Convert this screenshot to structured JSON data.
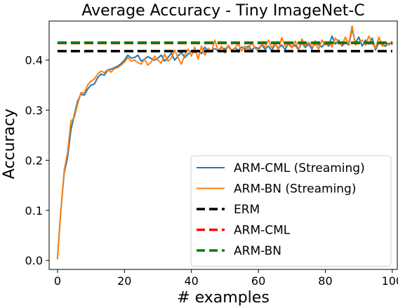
{
  "chart_data": {
    "type": "line",
    "title": "Average Accuracy - Tiny ImageNet-C",
    "xlabel": "# examples",
    "ylabel": "Accuracy",
    "xlim": [
      -2.5,
      101.5
    ],
    "ylim": [
      -0.018,
      0.478
    ],
    "xticks": [
      0,
      20,
      40,
      60,
      80,
      100
    ],
    "yticks": [
      0.0,
      0.1,
      0.2,
      0.3,
      0.4
    ],
    "ytick_labels": [
      "0.0",
      "0.1",
      "0.2",
      "0.3",
      "0.4"
    ],
    "grid": false,
    "legend_position": "lower-right",
    "x": [
      0,
      1,
      2,
      3,
      4,
      5,
      6,
      7,
      8,
      9,
      10,
      11,
      12,
      13,
      14,
      15,
      16,
      17,
      18,
      19,
      20,
      21,
      22,
      23,
      24,
      25,
      26,
      27,
      28,
      29,
      30,
      31,
      32,
      33,
      34,
      35,
      36,
      37,
      38,
      39,
      40,
      41,
      42,
      43,
      44,
      45,
      46,
      47,
      48,
      49,
      50,
      51,
      52,
      53,
      54,
      55,
      56,
      57,
      58,
      59,
      60,
      61,
      62,
      63,
      64,
      65,
      66,
      67,
      68,
      69,
      70,
      71,
      72,
      73,
      74,
      75,
      76,
      77,
      78,
      79,
      80,
      81,
      82,
      83,
      84,
      85,
      86,
      87,
      88,
      89,
      90,
      91,
      92,
      93,
      94,
      95,
      96,
      97,
      98,
      99,
      100
    ],
    "series": [
      {
        "name": "ARM-CML (Streaming)",
        "style": "solid",
        "color": "#1f77b4",
        "values": [
          0.005,
          0.1,
          0.175,
          0.205,
          0.26,
          0.29,
          0.318,
          0.332,
          0.33,
          0.342,
          0.35,
          0.352,
          0.365,
          0.372,
          0.37,
          0.38,
          0.382,
          0.385,
          0.388,
          0.393,
          0.4,
          0.41,
          0.404,
          0.405,
          0.41,
          0.398,
          0.402,
          0.407,
          0.403,
          0.4,
          0.404,
          0.41,
          0.398,
          0.405,
          0.414,
          0.4,
          0.408,
          0.416,
          0.405,
          0.412,
          0.418,
          0.415,
          0.42,
          0.413,
          0.426,
          0.416,
          0.42,
          0.423,
          0.418,
          0.425,
          0.422,
          0.427,
          0.419,
          0.424,
          0.42,
          0.426,
          0.422,
          0.428,
          0.42,
          0.426,
          0.423,
          0.43,
          0.422,
          0.428,
          0.418,
          0.432,
          0.424,
          0.43,
          0.421,
          0.434,
          0.426,
          0.43,
          0.42,
          0.436,
          0.425,
          0.432,
          0.422,
          0.438,
          0.43,
          0.426,
          0.436,
          0.428,
          0.448,
          0.432,
          0.44,
          0.428,
          0.436,
          0.43,
          0.462,
          0.434,
          0.446,
          0.428,
          0.44,
          0.432,
          0.444,
          0.42,
          0.436,
          0.43,
          0.428,
          0.434,
          0.432
        ]
      },
      {
        "name": "ARM-BN (Streaming)",
        "style": "solid",
        "color": "#ff7f0e",
        "values": [
          0.003,
          0.098,
          0.18,
          0.215,
          0.278,
          0.285,
          0.312,
          0.335,
          0.334,
          0.35,
          0.358,
          0.362,
          0.372,
          0.378,
          0.375,
          0.381,
          0.376,
          0.383,
          0.385,
          0.39,
          0.396,
          0.405,
          0.398,
          0.4,
          0.395,
          0.392,
          0.402,
          0.39,
          0.396,
          0.408,
          0.4,
          0.394,
          0.412,
          0.398,
          0.404,
          0.42,
          0.405,
          0.392,
          0.41,
          0.422,
          0.408,
          0.426,
          0.402,
          0.428,
          0.41,
          0.424,
          0.416,
          0.44,
          0.418,
          0.428,
          0.414,
          0.43,
          0.42,
          0.424,
          0.433,
          0.418,
          0.428,
          0.42,
          0.436,
          0.424,
          0.418,
          0.432,
          0.426,
          0.44,
          0.424,
          0.434,
          0.42,
          0.445,
          0.428,
          0.432,
          0.424,
          0.438,
          0.42,
          0.442,
          0.428,
          0.436,
          0.426,
          0.432,
          0.422,
          0.44,
          0.43,
          0.436,
          0.426,
          0.444,
          0.436,
          0.43,
          0.446,
          0.432,
          0.468,
          0.43,
          0.436,
          0.44,
          0.43,
          0.448,
          0.434,
          0.424,
          0.446,
          0.428,
          0.436,
          0.43,
          0.436
        ]
      },
      {
        "name": "ERM",
        "style": "dashed",
        "color": "#000000",
        "constant": 0.418
      },
      {
        "name": "ARM-CML",
        "style": "dashed",
        "color": "#ff0000",
        "constant": 0.434
      },
      {
        "name": "ARM-BN",
        "style": "dashed",
        "color": "#008000",
        "constant": 0.435
      }
    ]
  }
}
